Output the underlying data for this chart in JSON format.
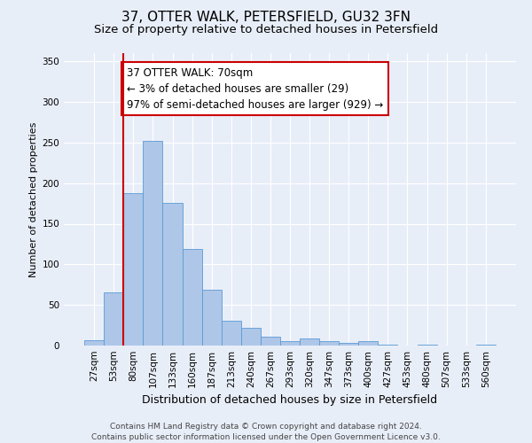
{
  "title": "37, OTTER WALK, PETERSFIELD, GU32 3FN",
  "subtitle": "Size of property relative to detached houses in Petersfield",
  "xlabel": "Distribution of detached houses by size in Petersfield",
  "ylabel": "Number of detached properties",
  "bar_labels": [
    "27sqm",
    "53sqm",
    "80sqm",
    "107sqm",
    "133sqm",
    "160sqm",
    "187sqm",
    "213sqm",
    "240sqm",
    "267sqm",
    "293sqm",
    "320sqm",
    "347sqm",
    "373sqm",
    "400sqm",
    "427sqm",
    "453sqm",
    "480sqm",
    "507sqm",
    "533sqm",
    "560sqm"
  ],
  "bar_values": [
    7,
    66,
    188,
    252,
    176,
    119,
    69,
    31,
    22,
    11,
    5,
    9,
    5,
    3,
    5,
    1,
    0,
    1,
    0,
    0,
    1
  ],
  "bar_color": "#aec6e8",
  "bar_edgecolor": "#5b9bd5",
  "background_color": "#e8eef8",
  "grid_color": "#ffffff",
  "vline_x_idx": 1.5,
  "vline_color": "#cc0000",
  "annotation_text": "37 OTTER WALK: 70sqm\n← 3% of detached houses are smaller (29)\n97% of semi-detached houses are larger (929) →",
  "annotation_box_edgecolor": "#cc0000",
  "annotation_box_facecolor": "#ffffff",
  "ylim": [
    0,
    360
  ],
  "yticks": [
    0,
    50,
    100,
    150,
    200,
    250,
    300,
    350
  ],
  "footer_line1": "Contains HM Land Registry data © Crown copyright and database right 2024.",
  "footer_line2": "Contains public sector information licensed under the Open Government Licence v3.0.",
  "title_fontsize": 11,
  "subtitle_fontsize": 9.5,
  "xlabel_fontsize": 9,
  "ylabel_fontsize": 8,
  "tick_fontsize": 7.5,
  "annotation_fontsize": 8.5,
  "footer_fontsize": 6.5
}
